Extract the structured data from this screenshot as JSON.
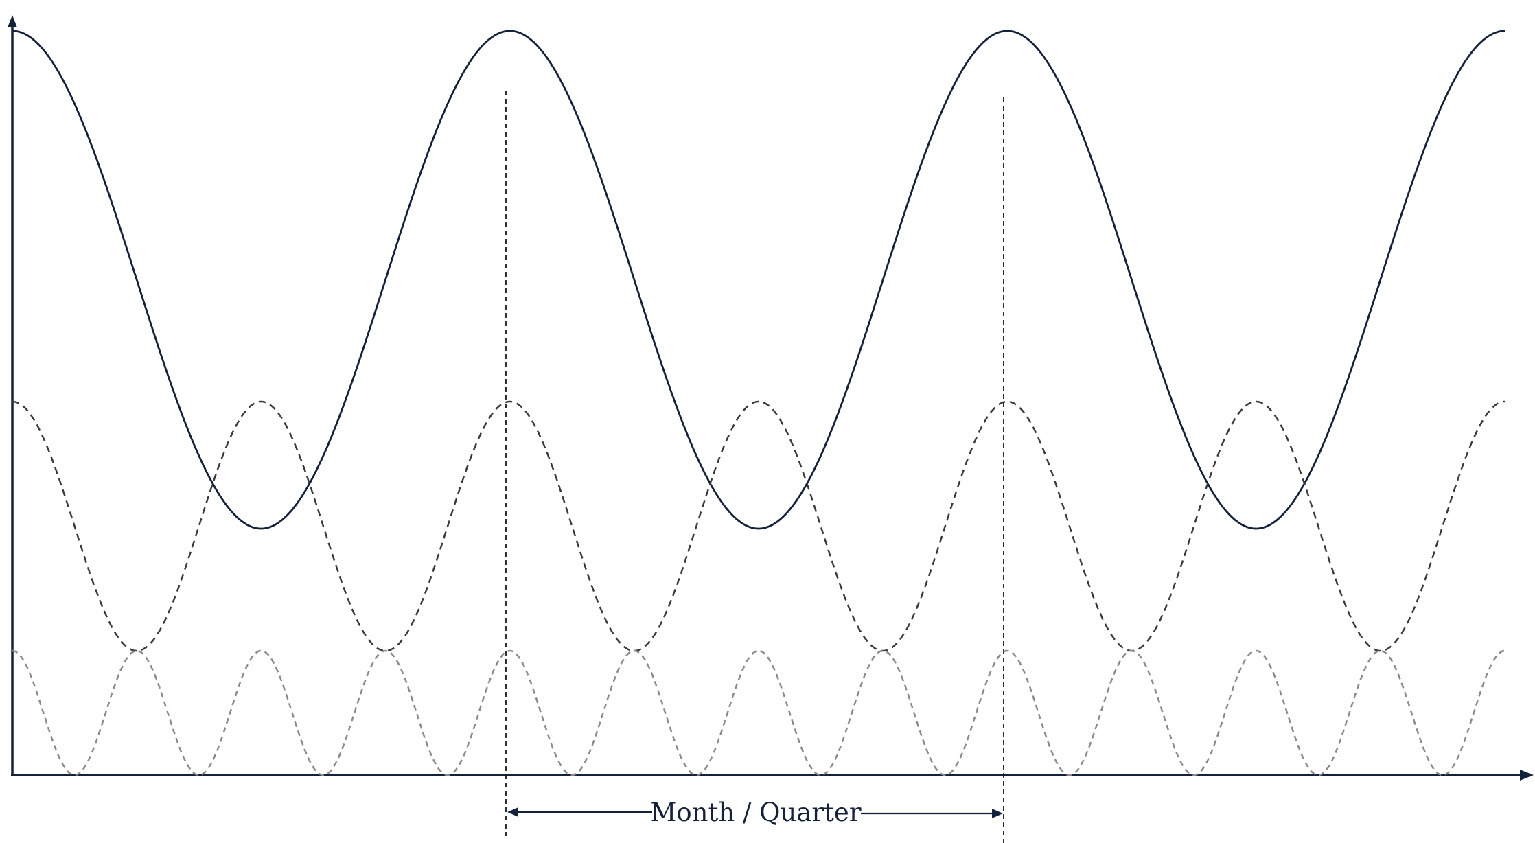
{
  "diagram": {
    "span_label": "Month / Quarter",
    "waves": [
      {
        "name": "solid",
        "cycles": 3,
        "style": "solid",
        "color": "#14213a"
      },
      {
        "name": "dashed",
        "cycles": 6,
        "style": "dashed",
        "color": "#3a3a3a"
      },
      {
        "name": "dotted",
        "cycles": 12,
        "style": "dotted",
        "color": "#8a8a8a"
      }
    ],
    "divider_count": 2
  }
}
